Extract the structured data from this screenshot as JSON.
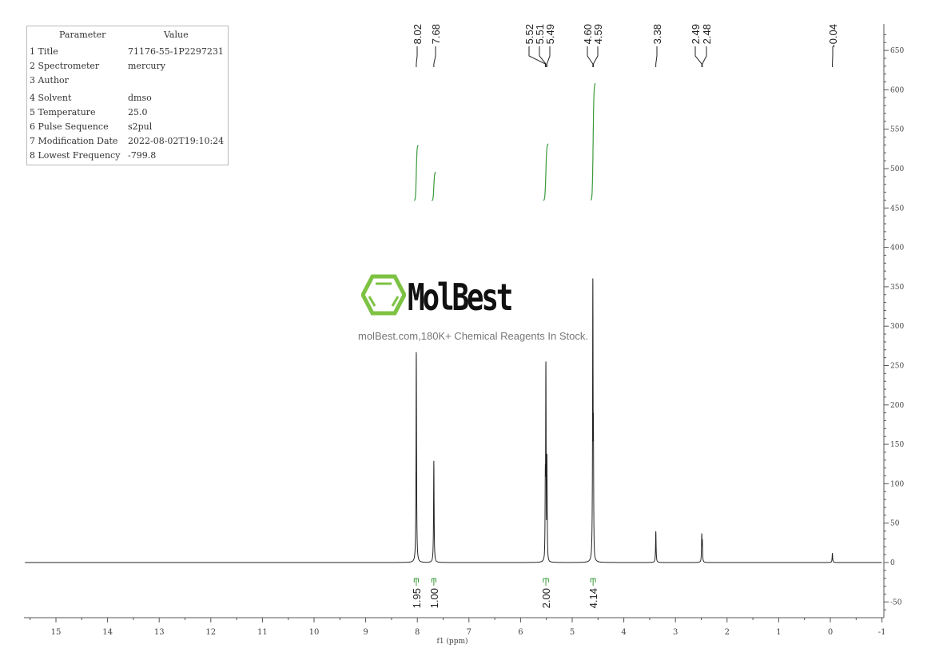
{
  "parameters": {
    "header": [
      "Parameter",
      "Value"
    ],
    "rows": [
      {
        "key": "1 Title",
        "value": "71176-55-1P2297231"
      },
      {
        "key": "2 Spectrometer",
        "value": "mercury"
      },
      {
        "key": "3 Author",
        "value": ""
      },
      {
        "key": "4 Solvent",
        "value": "dmso"
      },
      {
        "key": "5 Temperature",
        "value": "25.0"
      },
      {
        "key": "6 Pulse Sequence",
        "value": "s2pul"
      },
      {
        "key": "7 Modification Date",
        "value": "2022-08-02T19:10:24"
      },
      {
        "key": "8 Lowest Frequency",
        "value": "-799.8"
      }
    ]
  },
  "watermark": {
    "brand": "MolBest",
    "tagline": "molBest.com,180K+ Chemical Reagents In Stock.",
    "brand_color": "#7dc242"
  },
  "chart_data": {
    "type": "line",
    "title": "",
    "xlabel": "f1 (ppm)",
    "ylabel": "",
    "xlim": [
      15.6,
      -1
    ],
    "ylim": [
      -70,
      680
    ],
    "x_reversed": true,
    "grid": false,
    "x_ticks": [
      "15",
      "14",
      "13",
      "12",
      "11",
      "10",
      "9",
      "8",
      "7",
      "6",
      "5",
      "4",
      "3",
      "2",
      "1",
      "0",
      "-1"
    ],
    "y_ticks": [
      "650",
      "600",
      "550",
      "500",
      "450",
      "400",
      "350",
      "300",
      "250",
      "200",
      "150",
      "100",
      "50",
      "0",
      "-50"
    ],
    "line_color": "#222222",
    "integral_color": "#3a9a3a",
    "peaks": [
      {
        "ppm": 8.02,
        "intensity": 269
      },
      {
        "ppm": 7.68,
        "intensity": 129
      },
      {
        "ppm": 5.52,
        "intensity": 125
      },
      {
        "ppm": 5.51,
        "intensity": 257
      },
      {
        "ppm": 5.49,
        "intensity": 138
      },
      {
        "ppm": 4.6,
        "intensity": 363
      },
      {
        "ppm": 4.59,
        "intensity": 190
      },
      {
        "ppm": 3.38,
        "intensity": 40
      },
      {
        "ppm": 2.49,
        "intensity": 37
      },
      {
        "ppm": 2.48,
        "intensity": 30
      },
      {
        "ppm": -0.04,
        "intensity": 12
      }
    ],
    "peak_labels": [
      "8.02",
      "7.68",
      "5.52",
      "5.51",
      "5.49",
      "4.60",
      "4.59",
      "3.38",
      "2.49",
      "2.48",
      "-0.04"
    ],
    "integrals": [
      {
        "from": 8.06,
        "to": 7.98,
        "value": "1.95"
      },
      {
        "from": 7.72,
        "to": 7.64,
        "value": "1.00"
      },
      {
        "from": 5.56,
        "to": 5.46,
        "value": "2.00"
      },
      {
        "from": 4.64,
        "to": 4.55,
        "value": "4.14"
      }
    ]
  }
}
